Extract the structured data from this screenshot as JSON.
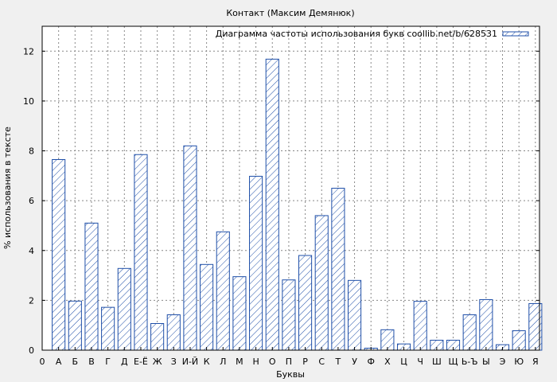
{
  "chart_data": {
    "type": "bar",
    "title": "Контакт (Максим Демянюк)",
    "xlabel": "Буквы",
    "ylabel": "% использования в тексте",
    "legend": {
      "label": "Диаграмма частоты использования букв coollib.net/b/628531",
      "position": "top-right"
    },
    "x_start_label": "0",
    "categories": [
      "А",
      "Б",
      "В",
      "Г",
      "Д",
      "Е-Ё",
      "Ж",
      "З",
      "И-Й",
      "К",
      "Л",
      "М",
      "Н",
      "О",
      "П",
      "Р",
      "С",
      "Т",
      "У",
      "Ф",
      "Х",
      "Ц",
      "Ч",
      "Ш",
      "Щ",
      "Ь-Ъ",
      "Ы",
      "Э",
      "Ю",
      "Я"
    ],
    "values": [
      7.65,
      1.97,
      5.1,
      1.72,
      3.28,
      7.85,
      1.07,
      1.42,
      8.2,
      3.44,
      4.75,
      2.95,
      6.98,
      11.68,
      2.82,
      3.8,
      5.4,
      6.5,
      2.8,
      0.08,
      0.82,
      0.25,
      1.96,
      0.4,
      0.4,
      1.42,
      2.03,
      0.22,
      0.78,
      1.87
    ],
    "yticks": [
      0,
      2,
      4,
      6,
      8,
      10,
      12
    ],
    "ylim": [
      0,
      13
    ],
    "grid": true,
    "colors": {
      "bar_stroke": "#1f4fa8",
      "hatch": "#1f4fa8",
      "background": "#f0f0f0",
      "plot_background": "#ffffff"
    }
  }
}
